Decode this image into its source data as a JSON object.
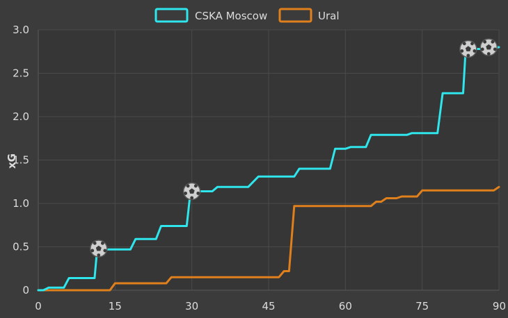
{
  "colors": {
    "background": "#3b3b3b",
    "plot_background": "#363636",
    "grid": "#4a4a4a",
    "text": "#dcdcdc",
    "cska": "#2ee6ec",
    "ural": "#e0801c"
  },
  "chart_data": {
    "type": "line",
    "step": true,
    "xlim": [
      0,
      90
    ],
    "ylim": [
      0,
      3.0
    ],
    "xticks": [
      "0",
      "15",
      "30",
      "45",
      "60",
      "75",
      "90"
    ],
    "xtick_values": [
      0,
      15,
      30,
      45,
      60,
      75,
      90
    ],
    "yticks": [
      "0",
      "0.5",
      "1.0",
      "1.5",
      "2.0",
      "2.5",
      "3.0"
    ],
    "ytick_values": [
      0,
      0.5,
      1.0,
      1.5,
      2.0,
      2.5,
      3.0
    ],
    "xlabel": "",
    "ylabel": "xG",
    "grid": true,
    "legend": "top",
    "series": [
      {
        "name": "CSKA Moscow",
        "color": "#2ee6ec",
        "points": [
          [
            0,
            0
          ],
          [
            1,
            0
          ],
          [
            2,
            0.03
          ],
          [
            5,
            0.03
          ],
          [
            6,
            0.14
          ],
          [
            11,
            0.14
          ],
          [
            11.5,
            0.47
          ],
          [
            18,
            0.47
          ],
          [
            19,
            0.59
          ],
          [
            23,
            0.59
          ],
          [
            24,
            0.74
          ],
          [
            29,
            0.74
          ],
          [
            29.7,
            1.12
          ],
          [
            31,
            1.14
          ],
          [
            34,
            1.14
          ],
          [
            35,
            1.19
          ],
          [
            41,
            1.19
          ],
          [
            43,
            1.31
          ],
          [
            50,
            1.31
          ],
          [
            51,
            1.4
          ],
          [
            57,
            1.4
          ],
          [
            58,
            1.63
          ],
          [
            60,
            1.63
          ],
          [
            61,
            1.65
          ],
          [
            64,
            1.65
          ],
          [
            65,
            1.79
          ],
          [
            70,
            1.79
          ],
          [
            72,
            1.79
          ],
          [
            73,
            1.81
          ],
          [
            78,
            1.81
          ],
          [
            79,
            2.27
          ],
          [
            83,
            2.27
          ],
          [
            83.5,
            2.78
          ],
          [
            87,
            2.78
          ],
          [
            90,
            2.8
          ]
        ],
        "goals": [
          [
            11.8,
            0.48
          ],
          [
            30,
            1.14
          ],
          [
            84,
            2.78
          ],
          [
            88,
            2.8
          ]
        ]
      },
      {
        "name": "Ural",
        "color": "#e0801c",
        "points": [
          [
            0,
            0
          ],
          [
            14,
            0
          ],
          [
            15,
            0.08
          ],
          [
            25,
            0.08
          ],
          [
            26,
            0.15
          ],
          [
            47,
            0.15
          ],
          [
            48,
            0.22
          ],
          [
            49,
            0.22
          ],
          [
            50,
            0.97
          ],
          [
            65,
            0.97
          ],
          [
            66,
            1.02
          ],
          [
            67,
            1.02
          ],
          [
            68,
            1.06
          ],
          [
            70,
            1.06
          ],
          [
            71,
            1.08
          ],
          [
            74,
            1.08
          ],
          [
            75,
            1.15
          ],
          [
            89,
            1.15
          ],
          [
            90,
            1.19
          ]
        ],
        "goals": []
      }
    ]
  }
}
